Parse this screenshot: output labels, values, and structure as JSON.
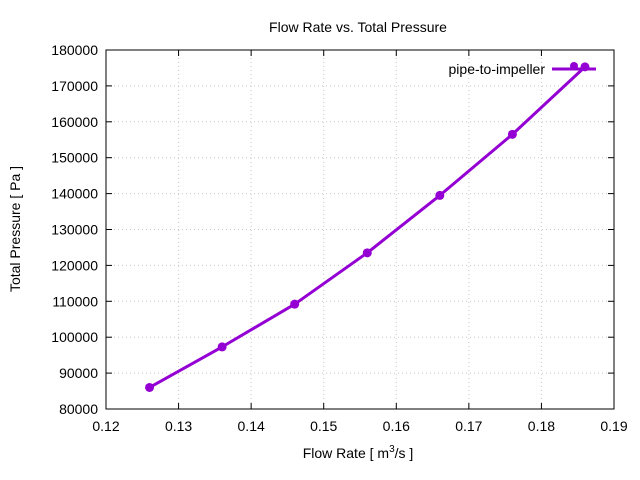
{
  "chart_data": {
    "type": "line",
    "title": "Flow Rate vs. Total Pressure",
    "xlabel_main": "Flow Rate [ m",
    "xlabel_sup": "3",
    "xlabel_tail": "/s ]",
    "ylabel": "Total Pressure [ Pa ]",
    "xlim": [
      0.12,
      0.19
    ],
    "ylim": [
      80000,
      180000
    ],
    "x_ticks": [
      "0.12",
      "0.13",
      "0.14",
      "0.15",
      "0.16",
      "0.17",
      "0.18",
      "0.19"
    ],
    "y_ticks": [
      "80000",
      "90000",
      "100000",
      "110000",
      "120000",
      "130000",
      "140000",
      "150000",
      "160000",
      "170000",
      "180000"
    ],
    "grid": true,
    "legend_position": "top-right",
    "series": [
      {
        "name": "pipe-to-impeller",
        "color": "#9400d3",
        "x": [
          0.126,
          0.136,
          0.146,
          0.156,
          0.166,
          0.176,
          0.186
        ],
        "y": [
          86000,
          97300,
          109200,
          123500,
          139500,
          156500,
          175300
        ]
      }
    ]
  }
}
